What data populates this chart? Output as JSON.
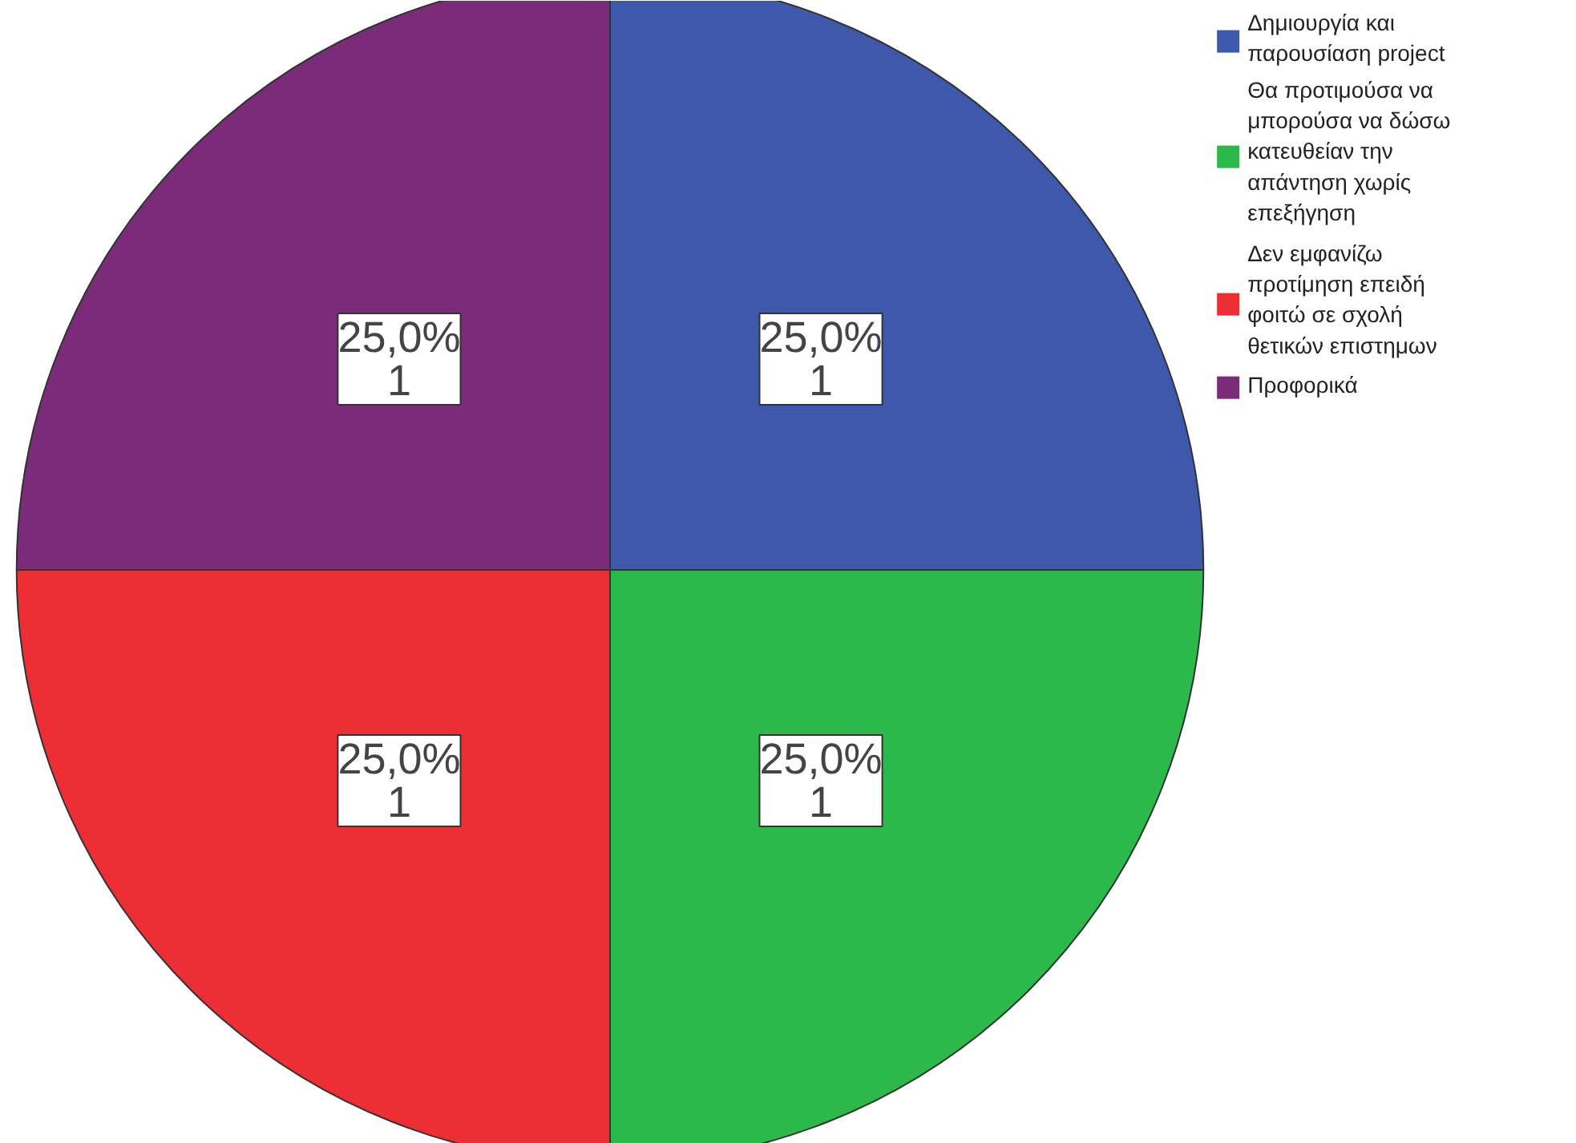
{
  "chart_data": {
    "type": "pie",
    "categories": [
      "Δημιουργία και παρουσίαση project",
      "Θα προτιμούσα να μπορούσα να δώσω κατευθείαν την απάντηση χωρίς επεξήγηση",
      "Δεν εμφανίζω προτίμηση επειδή φοιτώ σε σχολή θετικών επιστημων",
      "Προφορικά"
    ],
    "values": [
      1,
      1,
      1,
      1
    ],
    "colors": [
      "#3e58ac",
      "#2db84b",
      "#ee2e35",
      "#7c2a7a"
    ],
    "value_labels": [
      "25,0%\n1",
      "25,0%\n1",
      "25,0%\n1",
      "25,0%\n1"
    ],
    "legend": "top right"
  }
}
